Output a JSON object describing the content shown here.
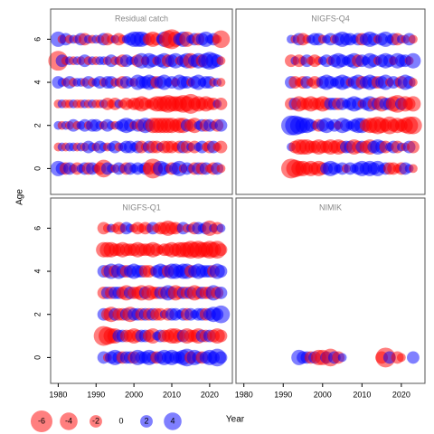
{
  "chart_data": {
    "type": "bubble",
    "xlabel": "Year",
    "ylabel": "Age",
    "xlim": [
      1978,
      2026
    ],
    "ylim": [
      -1.2,
      7.4
    ],
    "xticks": [
      1980,
      1990,
      2000,
      2010,
      2020
    ],
    "yticks": [
      0,
      2,
      4,
      6
    ],
    "colors": {
      "positive": "#0000ff",
      "negative": "#ff0000"
    },
    "legend": [
      -6,
      -4,
      -2,
      0,
      2,
      4
    ],
    "panels": [
      {
        "title": "Residual catch",
        "x": [
          1980,
          1981,
          1982,
          1983,
          1984,
          1985,
          1986,
          1987,
          1988,
          1989,
          1990,
          1991,
          1992,
          1993,
          1994,
          1995,
          1996,
          1997,
          1998,
          1999,
          2000,
          2001,
          2002,
          2003,
          2004,
          2005,
          2006,
          2007,
          2008,
          2009,
          2010,
          2011,
          2012,
          2013,
          2014,
          2015,
          2016,
          2017,
          2018,
          2019,
          2020,
          2021,
          2022,
          2023
        ],
        "ages": [
          0,
          1,
          2,
          3,
          4,
          5,
          6
        ],
        "values": [
          [
            3,
            2,
            -2,
            2,
            1,
            -2,
            1,
            2,
            -2,
            2,
            1,
            -2,
            -4,
            2,
            1,
            -1,
            2,
            1,
            -2,
            2,
            1,
            2,
            1,
            2,
            -2,
            -5,
            -2,
            3,
            2,
            1,
            -2,
            2,
            3,
            -1,
            2,
            1,
            -2,
            2,
            -2,
            2,
            -1,
            -2,
            2,
            -1
          ],
          [
            -1,
            1,
            -1,
            1,
            1,
            -1,
            1,
            -1,
            2,
            1,
            -1,
            2,
            1,
            -1,
            1,
            2,
            -1,
            1,
            2,
            2,
            1,
            2,
            -2,
            -1,
            2,
            -2,
            -2,
            1,
            -2,
            -2,
            -2,
            -1,
            -2,
            2,
            -2,
            1,
            -2,
            1,
            2,
            -1,
            -2,
            2,
            -1,
            -2
          ],
          [
            1,
            -1,
            1,
            -1,
            2,
            -1,
            1,
            2,
            -1,
            2,
            2,
            1,
            -1,
            2,
            1,
            -1,
            1,
            2,
            3,
            2,
            -1,
            2,
            -2,
            3,
            2,
            -3,
            -3,
            -3,
            -3,
            -3,
            -3,
            -2,
            -3,
            -3,
            2,
            -2,
            -3,
            1,
            2,
            -2,
            2,
            1,
            -2,
            2
          ],
          [
            -1,
            1,
            -1,
            -1,
            1,
            -1,
            -1,
            1,
            -1,
            1,
            -1,
            -1,
            1,
            -2,
            -1,
            -2,
            1,
            -1,
            -2,
            -1,
            -2,
            -2,
            -3,
            -2,
            -1,
            -2,
            -3,
            -3,
            -3,
            -4,
            -3,
            -3,
            -3,
            -4,
            -3,
            -5,
            -2,
            -3,
            -2,
            -3,
            -2,
            -2,
            1,
            -2
          ],
          [
            2,
            1,
            -1,
            2,
            -1,
            1,
            1,
            -1,
            2,
            -1,
            1,
            2,
            -1,
            2,
            2,
            -1,
            1,
            -2,
            2,
            1,
            -1,
            3,
            2,
            2,
            3,
            2,
            -2,
            2,
            3,
            1,
            2,
            -1,
            3,
            2,
            2,
            -1,
            2,
            3,
            1,
            2,
            2,
            -1,
            1,
            -1
          ],
          [
            -5,
            2,
            -1,
            1,
            -1,
            1,
            -1,
            2,
            -1,
            1,
            -1,
            1,
            1,
            -1,
            2,
            -1,
            1,
            -2,
            2,
            1,
            1,
            -2,
            3,
            -1,
            3,
            2,
            -1,
            2,
            3,
            -2,
            2,
            3,
            -1,
            2,
            3,
            -3,
            2,
            3,
            -2,
            3,
            4,
            3,
            2,
            -1
          ],
          [
            3,
            -1,
            2,
            -1,
            1,
            -1,
            2,
            -2,
            1,
            -1,
            1,
            -1,
            2,
            -2,
            -1,
            1,
            -2,
            -1,
            1,
            2,
            3,
            3,
            3,
            2,
            -2,
            -3,
            -2,
            1,
            3,
            -4,
            -5,
            -3,
            2,
            3,
            -3,
            1,
            2,
            -2,
            2,
            3,
            1,
            2,
            -1,
            -4
          ]
        ]
      },
      {
        "title": "NIGFS-Q4",
        "x": [
          1992,
          1993,
          1994,
          1995,
          1996,
          1997,
          1998,
          1999,
          2000,
          2001,
          2002,
          2003,
          2004,
          2005,
          2006,
          2007,
          2008,
          2009,
          2010,
          2011,
          2012,
          2013,
          2014,
          2015,
          2016,
          2017,
          2018,
          2019,
          2020,
          2021,
          2022,
          2023
        ],
        "ages": [
          0,
          1,
          2,
          3,
          4,
          5,
          6
        ],
        "values": [
          [
            -5,
            -4,
            -3,
            -3,
            -2,
            -3,
            -2,
            -3,
            -2,
            2,
            3,
            2,
            1,
            2,
            -1,
            2,
            1,
            2,
            3,
            2,
            3,
            2,
            3,
            1,
            2,
            -2,
            -2,
            -1,
            -2,
            2,
            1,
            -1
          ],
          [
            1,
            -2,
            -3,
            -3,
            -3,
            -2,
            -2,
            -3,
            -2,
            -2,
            -3,
            -2,
            -3,
            -2,
            2,
            2,
            -3,
            -2,
            2,
            -2,
            -3,
            2,
            3,
            2,
            -2,
            1,
            2,
            -2,
            1,
            -1,
            2,
            -2
          ],
          [
            5,
            5,
            4,
            3,
            3,
            2,
            1,
            -2,
            2,
            3,
            1,
            2,
            -1,
            3,
            2,
            1,
            2,
            3,
            3,
            -2,
            -3,
            -3,
            -4,
            -3,
            -2,
            -4,
            -2,
            -3,
            -2,
            -3,
            -4,
            -4
          ],
          [
            -2,
            2,
            -3,
            -2,
            -2,
            -3,
            -2,
            -2,
            -3,
            -2,
            2,
            2,
            -2,
            2,
            1,
            2,
            3,
            2,
            -1,
            2,
            3,
            -2,
            2,
            -3,
            2,
            2,
            -3,
            -4,
            2,
            -3,
            -2,
            -3
          ],
          [
            2,
            -2,
            -1,
            -2,
            2,
            -1,
            -2,
            -1,
            2,
            3,
            2,
            1,
            2,
            3,
            2,
            -1,
            2,
            3,
            -2,
            2,
            3,
            2,
            -2,
            2,
            3,
            -1,
            2,
            1,
            -2,
            3,
            2,
            -1
          ],
          [
            -2,
            1,
            -2,
            -1,
            2,
            -1,
            -2,
            -1,
            1,
            2,
            -1,
            2,
            3,
            2,
            1,
            2,
            3,
            -2,
            2,
            1,
            3,
            2,
            -1,
            2,
            3,
            2,
            -1,
            3,
            2,
            2,
            -1,
            3
          ],
          [
            1,
            -1,
            2,
            -2,
            -1,
            1,
            2,
            2,
            -1,
            1,
            2,
            -1,
            2,
            3,
            2,
            2,
            1,
            2,
            -2,
            2,
            3,
            2,
            -1,
            2,
            3,
            1,
            2,
            -2,
            1,
            -1,
            2,
            -1
          ]
        ]
      },
      {
        "title": "NIGFS-Q1",
        "x": [
          1992,
          1993,
          1994,
          1995,
          1996,
          1997,
          1998,
          1999,
          2000,
          2001,
          2002,
          2003,
          2004,
          2005,
          2006,
          2007,
          2008,
          2009,
          2010,
          2011,
          2012,
          2013,
          2014,
          2015,
          2016,
          2017,
          2018,
          2019,
          2020,
          2021,
          2022,
          2023
        ],
        "ages": [
          0,
          1,
          2,
          3,
          4,
          5,
          6
        ],
        "values": [
          [
            2,
            -1,
            2,
            3,
            2,
            -2,
            2,
            2,
            -2,
            3,
            2,
            2,
            3,
            2,
            -2,
            2,
            3,
            2,
            3,
            2,
            2,
            3,
            4,
            -2,
            3,
            2,
            -2,
            2,
            3,
            2,
            4,
            2
          ],
          [
            -5,
            -4,
            -3,
            -3,
            2,
            2,
            -2,
            -2,
            -3,
            -2,
            2,
            2,
            -2,
            -3,
            1,
            2,
            -2,
            -2,
            -3,
            -3,
            -2,
            2,
            -3,
            -2,
            -2,
            -3,
            2,
            -2,
            2,
            -2,
            -3,
            -2
          ],
          [
            2,
            -2,
            -3,
            2,
            -2,
            -2,
            2,
            -3,
            2,
            2,
            -2,
            2,
            -2,
            2,
            -2,
            -2,
            1,
            -2,
            2,
            2,
            1,
            2,
            -2,
            2,
            1,
            2,
            2,
            -2,
            2,
            3,
            2,
            4
          ],
          [
            -2,
            2,
            -2,
            2,
            2,
            -2,
            -3,
            2,
            -2,
            -2,
            -3,
            2,
            -3,
            -2,
            -2,
            2,
            -2,
            3,
            2,
            -3,
            -2,
            2,
            -2,
            2,
            -3,
            -2,
            2,
            -2,
            -2,
            3,
            -2,
            2
          ],
          [
            2,
            -2,
            3,
            -2,
            3,
            2,
            -2,
            2,
            3,
            2,
            2,
            -2,
            -2,
            -1,
            2,
            3,
            2,
            -2,
            3,
            3,
            2,
            3,
            3,
            -2,
            2,
            3,
            2,
            2,
            2,
            -2,
            3,
            2
          ],
          [
            -3,
            -3,
            -3,
            -2,
            -2,
            -3,
            -2,
            -2,
            -2,
            -3,
            -2,
            -2,
            -2,
            -3,
            -2,
            -1,
            -2,
            -2,
            -3,
            -2,
            -3,
            -3,
            -3,
            -4,
            -3,
            -4,
            -3,
            -3,
            -4,
            -3,
            -4,
            -2
          ],
          [
            -2,
            -1,
            1,
            -1,
            -2,
            -1,
            2,
            1,
            -1,
            -2,
            -1,
            -2,
            -1,
            2,
            -1,
            -2,
            -2,
            -3,
            -2,
            -2,
            -1,
            2,
            -1,
            1,
            -2,
            2,
            1,
            2,
            -3,
            1,
            -2,
            1
          ]
        ]
      },
      {
        "title": "NIMIK",
        "x": [
          1994,
          1995,
          1996,
          1997,
          1998,
          1999,
          2000,
          2001,
          2002,
          2003,
          2004,
          2005,
          2015,
          2016,
          2017,
          2019,
          2020,
          2023
        ],
        "ages": [
          0
        ],
        "values": [
          [
            3,
            2,
            2,
            -2,
            2,
            -3,
            -3,
            2,
            -4,
            2,
            -2,
            1,
            -2,
            -5,
            2,
            -2,
            -1,
            2
          ]
        ]
      }
    ]
  }
}
